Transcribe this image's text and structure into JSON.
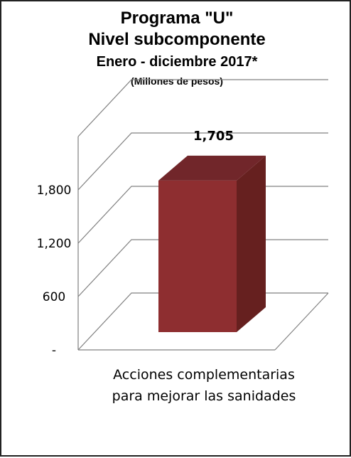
{
  "chart_data": {
    "type": "bar",
    "title_lines": [
      "Programa \"U\"",
      "Nivel subcomponente",
      "Enero - diciembre 2017*"
    ],
    "subtitle": "(Millones de pesos)",
    "categories": [
      "Acciones complementarias para mejorar las sanidades"
    ],
    "values": [
      1705
    ],
    "value_labels": [
      "1,705"
    ],
    "yticks": [
      0,
      600,
      1200,
      1800
    ],
    "ytick_labels": [
      "-",
      "600",
      "1,200",
      "1,800"
    ],
    "ylim": [
      0,
      2400
    ],
    "grid": true,
    "style": "3d",
    "colors": {
      "bar_front": "#8e2e30",
      "bar_side": "#66201f",
      "bar_top": "#71262a",
      "grid": "#808080"
    }
  }
}
